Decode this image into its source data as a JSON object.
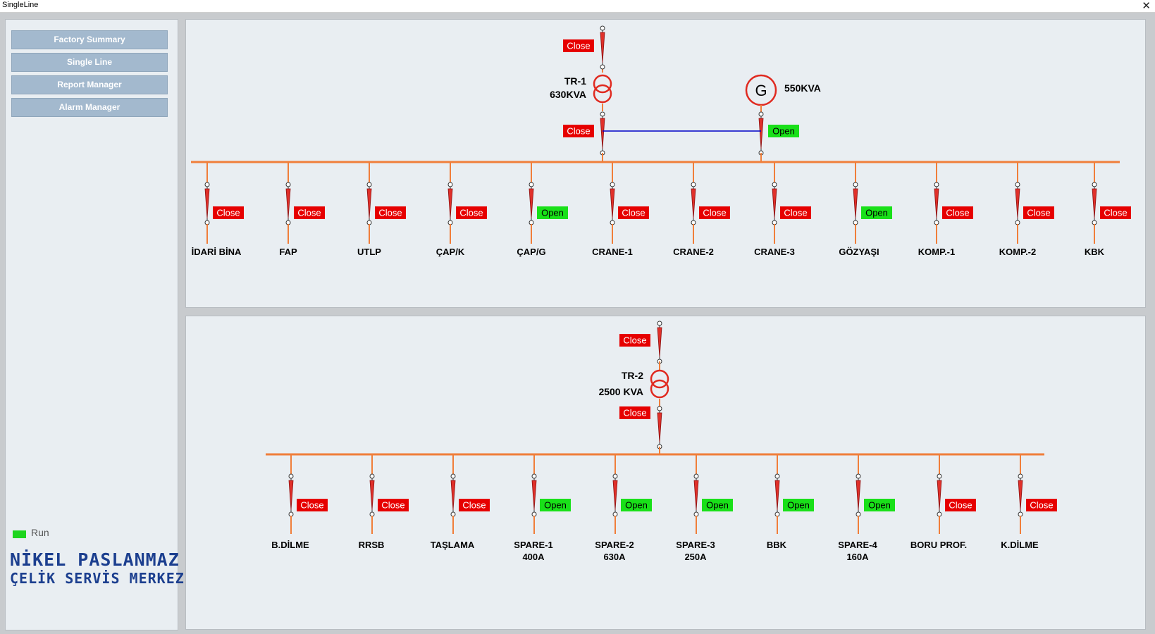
{
  "window": {
    "title": "SingleLine",
    "close_glyph": "✕"
  },
  "sidebar": {
    "nav": [
      "Factory Summary",
      "Single Line",
      "Report Manager",
      "Alarm Manager"
    ],
    "status_label": "Run",
    "logo_line1": "NİKEL PASLANMAZ",
    "logo_line2": "ÇELİK SERVİS MERKEZİ"
  },
  "colors": {
    "close": "#e60000",
    "open": "#19e019",
    "busbar": "#f07e3a",
    "tie": "#0000c8",
    "breaker": "#e0302a",
    "transformer": "#e02a20"
  },
  "top_panel": {
    "transformer": {
      "name": "TR-1",
      "rating": "630KVA",
      "upper_breaker": "Close",
      "lower_breaker": "Close"
    },
    "generator": {
      "symbol": "G",
      "rating": "550KVA",
      "breaker": "Open"
    },
    "feeders": [
      {
        "name": "İDARİ BİNA",
        "status": "Close"
      },
      {
        "name": "FAP",
        "status": "Close"
      },
      {
        "name": "UTLP",
        "status": "Close"
      },
      {
        "name": "ÇAP/K",
        "status": "Close"
      },
      {
        "name": "ÇAP/G",
        "status": "Open"
      },
      {
        "name": "CRANE-1",
        "status": "Close"
      },
      {
        "name": "CRANE-2",
        "status": "Close"
      },
      {
        "name": "CRANE-3",
        "status": "Close"
      },
      {
        "name": "GÖZYAŞI",
        "status": "Open"
      },
      {
        "name": "KOMP.-1",
        "status": "Close"
      },
      {
        "name": "KOMP.-2",
        "status": "Close"
      },
      {
        "name": "KBK",
        "status": "Close"
      }
    ]
  },
  "bottom_panel": {
    "transformer": {
      "name": "TR-2",
      "rating": "2500 KVA",
      "upper_breaker": "Close",
      "lower_breaker": "Close"
    },
    "feeders": [
      {
        "name": "B.DİLME",
        "sub": "",
        "status": "Close"
      },
      {
        "name": "RRSB",
        "sub": "",
        "status": "Close"
      },
      {
        "name": "TAŞLAMA",
        "sub": "",
        "status": "Close"
      },
      {
        "name": "SPARE-1",
        "sub": "400A",
        "status": "Open"
      },
      {
        "name": "SPARE-2",
        "sub": "630A",
        "status": "Open"
      },
      {
        "name": "SPARE-3",
        "sub": "250A",
        "status": "Open"
      },
      {
        "name": "BBK",
        "sub": "",
        "status": "Open"
      },
      {
        "name": "SPARE-4",
        "sub": "160A",
        "status": "Open"
      },
      {
        "name": "BORU PROF.",
        "sub": "",
        "status": "Close"
      },
      {
        "name": "K.DİLME",
        "sub": "",
        "status": "Close"
      }
    ]
  }
}
